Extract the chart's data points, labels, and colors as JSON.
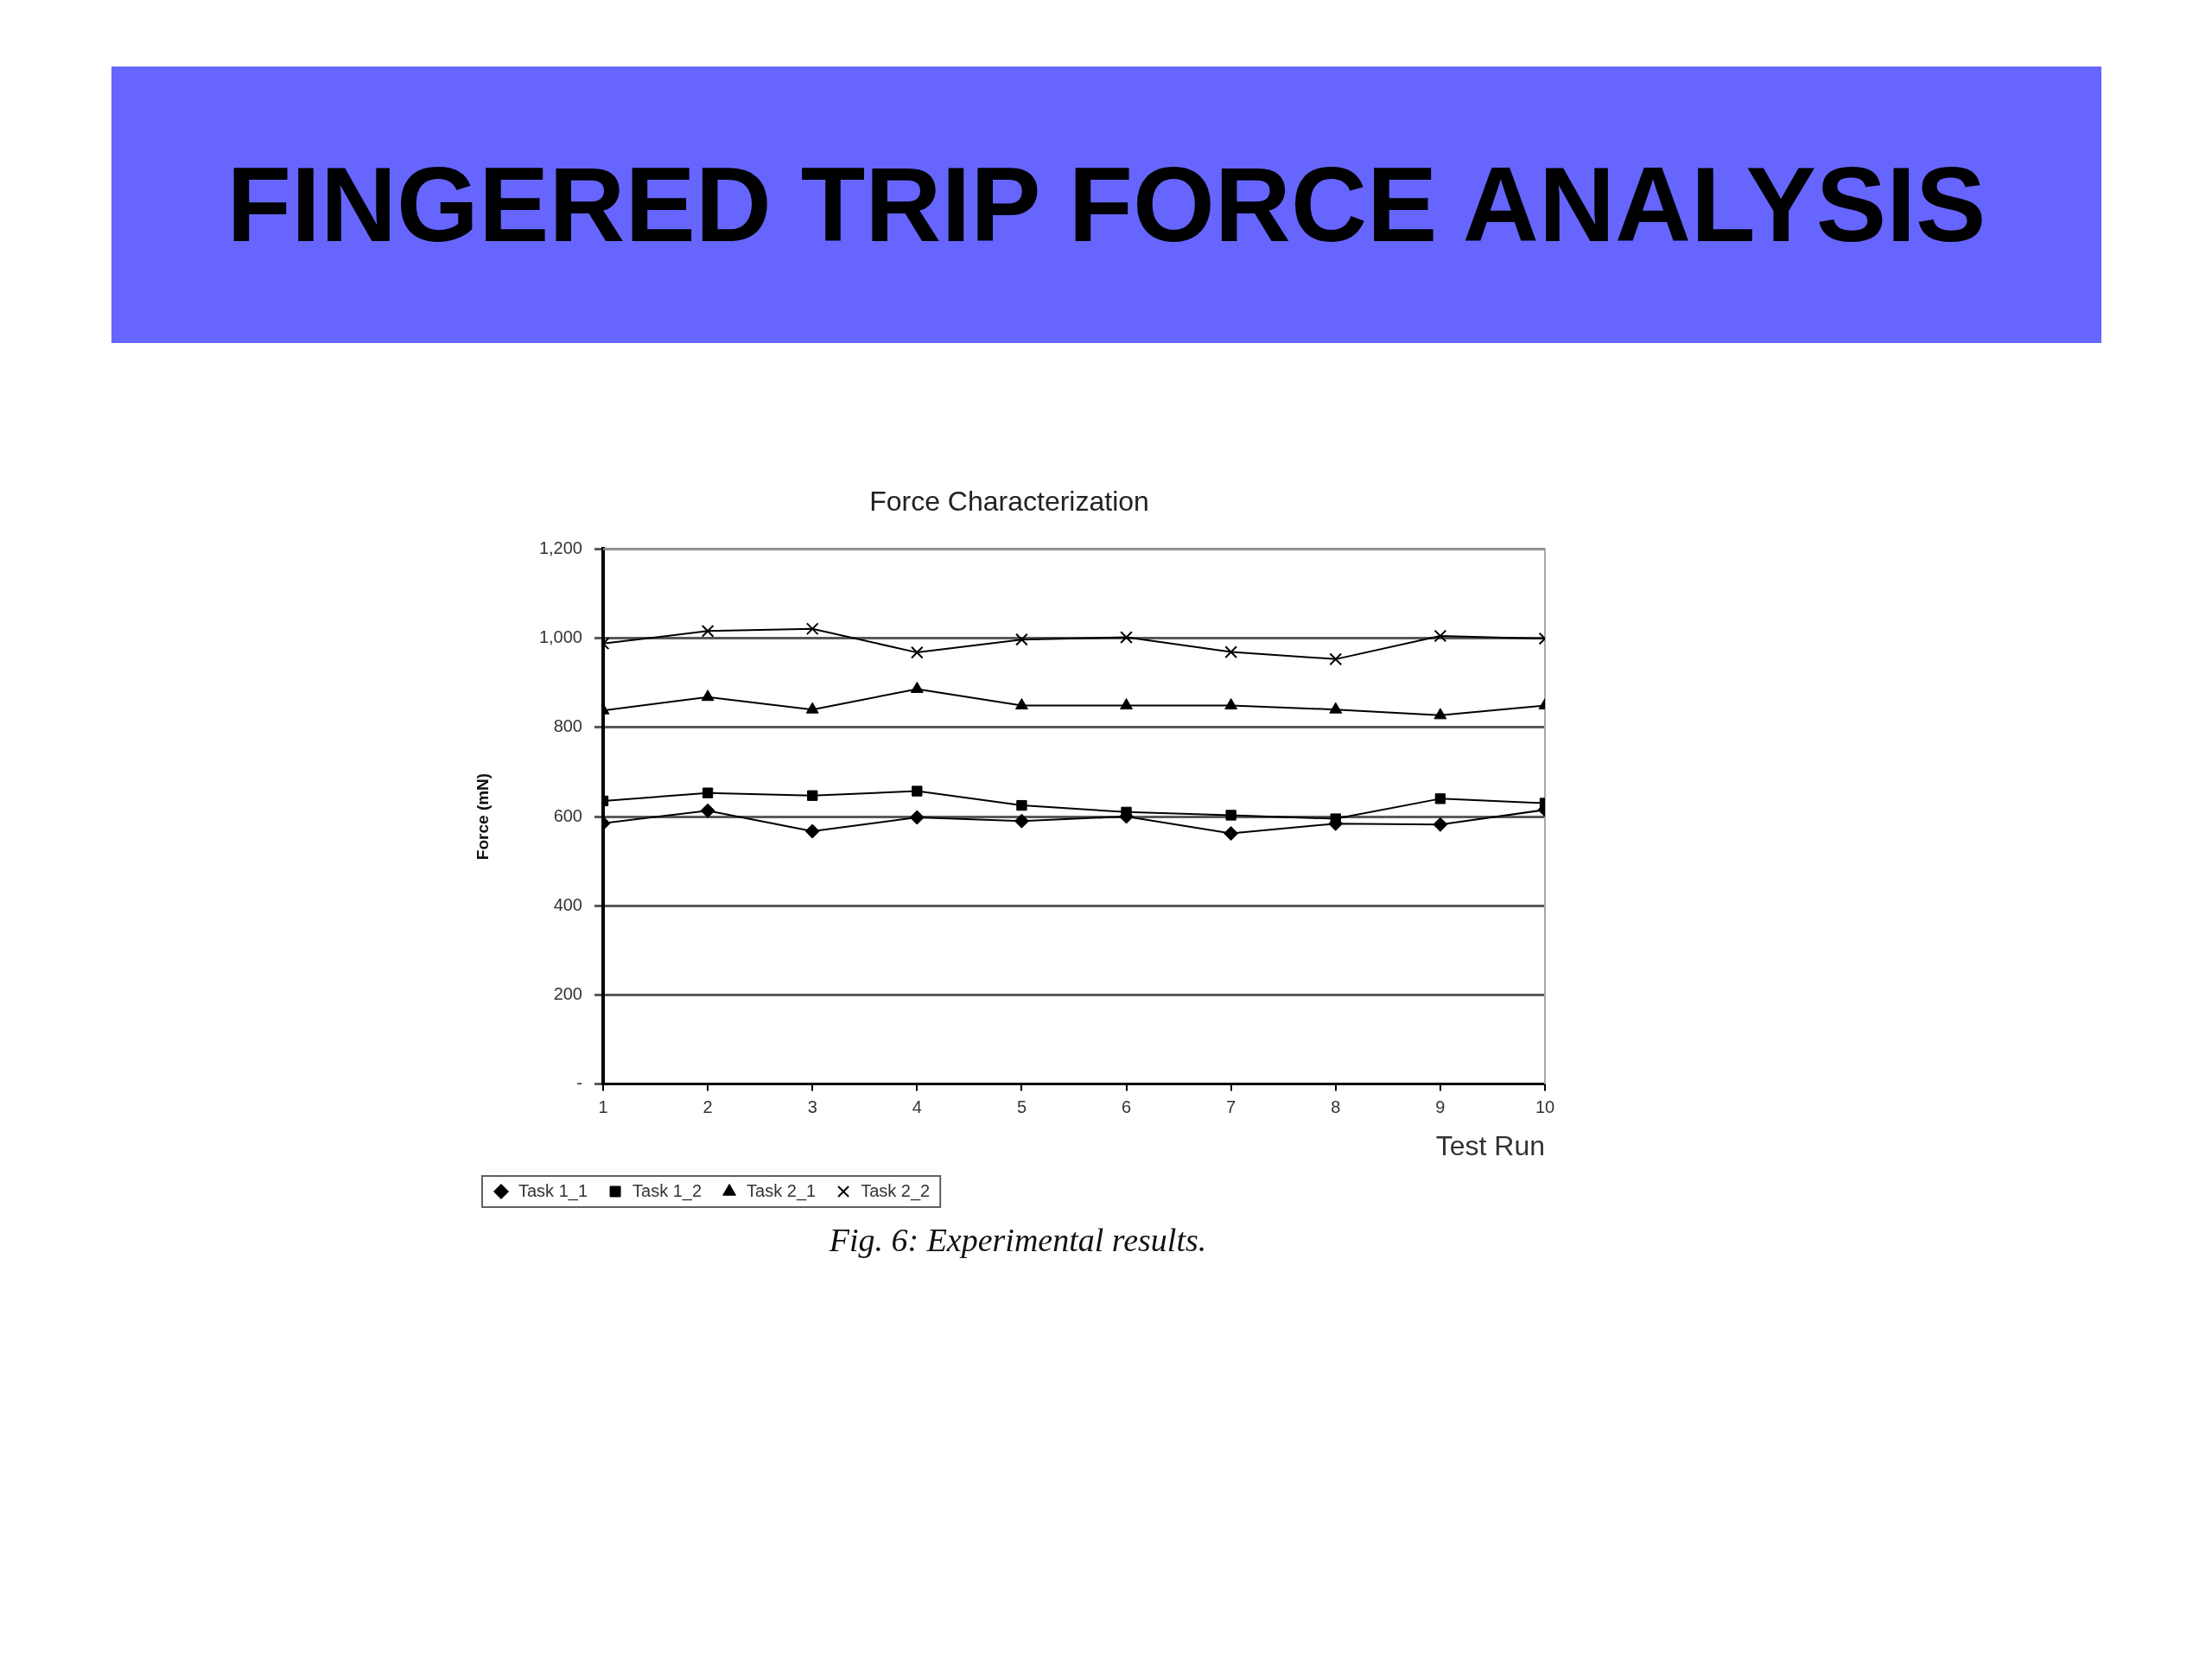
{
  "chart_data": {
    "type": "line",
    "title": "FINGERED TRIP FORCE ANALYSIS",
    "subtitle": "Force Characterization",
    "xlabel": "Test Run",
    "ylabel": "Force (mN)",
    "annotations": [
      "Fig. 6: Experimental results."
    ],
    "x": [
      1,
      2,
      3,
      4,
      5,
      6,
      7,
      8,
      9,
      10
    ],
    "xlim": [
      1,
      10
    ],
    "xticks": [
      1,
      2,
      3,
      4,
      5,
      6,
      7,
      8,
      9,
      10
    ],
    "ylim": [
      0,
      1200
    ],
    "yticks": [
      {
        "value": 0,
        "label": "-"
      },
      200,
      400,
      600,
      800,
      {
        "value": 1000,
        "label": "1,000"
      },
      {
        "value": 1200,
        "label": "1,200"
      }
    ],
    "grid": "y",
    "legend": "bottom left",
    "line_style": "solid",
    "series": [
      {
        "name": "Task 1_1",
        "color": "#000000",
        "marker": "diamond",
        "values": [
          585,
          613,
          567,
          598,
          590,
          600,
          562,
          584,
          582,
          615
        ]
      },
      {
        "name": "Task 1_2",
        "color": "#000000",
        "marker": "square",
        "values": [
          635,
          653,
          647,
          657,
          625,
          610,
          603,
          595,
          640,
          630
        ]
      },
      {
        "name": "Task 2_1",
        "color": "#000000",
        "marker": "triangle",
        "values": [
          838,
          868,
          840,
          886,
          849,
          849,
          849,
          840,
          827,
          849
        ]
      },
      {
        "name": "Task 2_2",
        "color": "#000000",
        "marker": "cross",
        "values": [
          988,
          1016,
          1021,
          968,
          997,
          1002,
          969,
          953,
          1005,
          999
        ]
      }
    ]
  }
}
